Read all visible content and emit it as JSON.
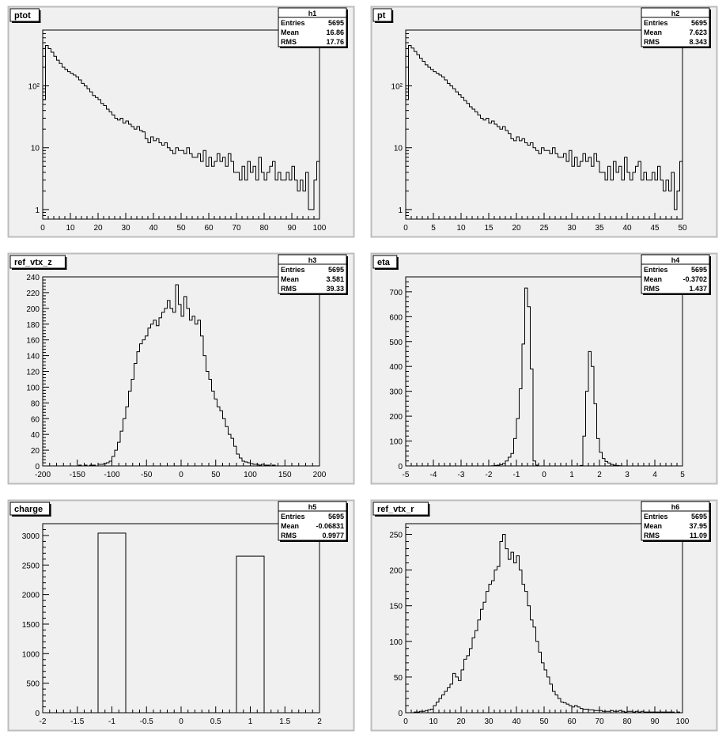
{
  "chart_data": [
    {
      "type": "bar",
      "title": "ptot",
      "stats": {
        "name": "h1",
        "entries": "5695",
        "mean": "16.86",
        "rms": "17.76"
      },
      "x_range": [
        0,
        100
      ],
      "x_ticks": [
        0,
        10,
        20,
        30,
        40,
        50,
        60,
        70,
        80,
        90,
        100
      ],
      "y_scale": "log",
      "ylim": [
        0.7,
        800
      ],
      "y_ticks": [
        {
          "value": 1,
          "label": "1"
        },
        {
          "value": 10,
          "label": "10"
        },
        {
          "value": 100,
          "label": "10²"
        }
      ],
      "bin_width": 1,
      "values": [
        60,
        450,
        400,
        350,
        300,
        260,
        230,
        200,
        185,
        170,
        160,
        150,
        140,
        125,
        110,
        100,
        90,
        80,
        70,
        65,
        60,
        52,
        48,
        42,
        38,
        34,
        30,
        28,
        30,
        25,
        27,
        24,
        22,
        20,
        22,
        19,
        18,
        14,
        12,
        15,
        13,
        14,
        12,
        11,
        12,
        10,
        9,
        8,
        10,
        9,
        9,
        8,
        10,
        8,
        7,
        7,
        8,
        6,
        9,
        5,
        7,
        5,
        6,
        8,
        6,
        7,
        5,
        8,
        6,
        4,
        4,
        3,
        5,
        3,
        6,
        4,
        5,
        3,
        7,
        4,
        3,
        4,
        5,
        6,
        3,
        4,
        3,
        3,
        4,
        3,
        5,
        3,
        2,
        3,
        2,
        4,
        1,
        1,
        3,
        6
      ]
    },
    {
      "type": "bar",
      "title": "pt",
      "stats": {
        "name": "h2",
        "entries": "5695",
        "mean": "7.623",
        "rms": "8.343"
      },
      "x_range": [
        0,
        50
      ],
      "x_ticks": [
        0,
        5,
        10,
        15,
        20,
        25,
        30,
        35,
        40,
        45,
        50
      ],
      "y_scale": "log",
      "ylim": [
        0.7,
        800
      ],
      "y_ticks": [
        {
          "value": 1,
          "label": "1"
        },
        {
          "value": 10,
          "label": "10"
        },
        {
          "value": 100,
          "label": "10²"
        }
      ],
      "bin_width": 0.5,
      "values": [
        60,
        450,
        410,
        360,
        320,
        280,
        250,
        220,
        200,
        185,
        170,
        160,
        150,
        140,
        125,
        110,
        100,
        90,
        80,
        72,
        65,
        58,
        52,
        46,
        42,
        38,
        34,
        30,
        28,
        30,
        25,
        27,
        24,
        22,
        20,
        22,
        19,
        17,
        14,
        13,
        15,
        13,
        14,
        12,
        11,
        12,
        10,
        9,
        8,
        10,
        9,
        9,
        8,
        10,
        8,
        7,
        7,
        8,
        6,
        9,
        5,
        7,
        5,
        6,
        8,
        6,
        7,
        5,
        8,
        6,
        4,
        4,
        3,
        5,
        3,
        6,
        4,
        5,
        3,
        7,
        4,
        3,
        4,
        5,
        6,
        3,
        4,
        3,
        3,
        4,
        3,
        5,
        3,
        2,
        3,
        2,
        4,
        1,
        2,
        6
      ]
    },
    {
      "type": "bar",
      "title": "ref_vtx_z",
      "stats": {
        "name": "h3",
        "entries": "5695",
        "mean": "3.581",
        "rms": "39.33"
      },
      "x_range": [
        -200,
        200
      ],
      "x_ticks": [
        -200,
        -150,
        -100,
        -50,
        0,
        50,
        100,
        150,
        200
      ],
      "y_scale": "linear",
      "ylim": [
        0,
        240
      ],
      "y_ticks": [
        {
          "value": 0,
          "label": "0"
        },
        {
          "value": 20,
          "label": "20"
        },
        {
          "value": 40,
          "label": "40"
        },
        {
          "value": 60,
          "label": "60"
        },
        {
          "value": 80,
          "label": "80"
        },
        {
          "value": 100,
          "label": "100"
        },
        {
          "value": 120,
          "label": "120"
        },
        {
          "value": 140,
          "label": "140"
        },
        {
          "value": 160,
          "label": "160"
        },
        {
          "value": 180,
          "label": "180"
        },
        {
          "value": 200,
          "label": "200"
        },
        {
          "value": 220,
          "label": "220"
        },
        {
          "value": 240,
          "label": "240"
        }
      ],
      "bin_width": 4,
      "x_start": -200,
      "values": [
        0,
        0,
        0,
        0,
        0,
        0,
        0,
        0,
        0,
        0,
        0,
        0,
        0,
        1,
        0,
        1,
        0,
        1,
        1,
        0,
        2,
        2,
        3,
        4,
        6,
        12,
        20,
        30,
        44,
        60,
        75,
        95,
        110,
        130,
        145,
        155,
        160,
        165,
        175,
        180,
        185,
        178,
        188,
        195,
        200,
        210,
        200,
        195,
        230,
        205,
        190,
        215,
        200,
        185,
        190,
        180,
        185,
        165,
        140,
        120,
        110,
        95,
        85,
        75,
        70,
        60,
        50,
        40,
        35,
        25,
        15,
        10,
        6,
        5,
        4,
        3,
        2,
        2,
        1,
        2,
        1,
        1,
        0,
        1,
        0,
        0,
        0,
        0,
        0,
        0,
        0,
        0,
        0,
        0,
        0,
        0,
        0,
        0,
        0,
        0
      ]
    },
    {
      "type": "bar",
      "title": "eta",
      "stats": {
        "name": "h4",
        "entries": "5695",
        "mean": "-0.3702",
        "rms": "1.437"
      },
      "x_range": [
        -5,
        5
      ],
      "x_ticks": [
        -5,
        -4,
        -3,
        -2,
        -1,
        0,
        1,
        2,
        3,
        4,
        5
      ],
      "y_scale": "linear",
      "ylim": [
        0,
        760
      ],
      "y_ticks": [
        {
          "value": 0,
          "label": "0"
        },
        {
          "value": 100,
          "label": "100"
        },
        {
          "value": 200,
          "label": "200"
        },
        {
          "value": 300,
          "label": "300"
        },
        {
          "value": 400,
          "label": "400"
        },
        {
          "value": 500,
          "label": "500"
        },
        {
          "value": 600,
          "label": "600"
        },
        {
          "value": 700,
          "label": "700"
        }
      ],
      "bin_width": 0.1,
      "x_start": -5,
      "values": [
        0,
        0,
        0,
        0,
        0,
        0,
        0,
        0,
        0,
        0,
        0,
        0,
        0,
        0,
        0,
        0,
        0,
        0,
        0,
        0,
        0,
        0,
        0,
        0,
        0,
        0,
        0,
        0,
        0,
        0,
        0,
        1,
        2,
        3,
        5,
        10,
        20,
        35,
        50,
        110,
        190,
        310,
        490,
        715,
        640,
        390,
        20,
        3,
        0,
        0,
        0,
        0,
        0,
        0,
        0,
        0,
        0,
        0,
        0,
        0,
        0,
        0,
        0,
        2,
        120,
        300,
        460,
        400,
        250,
        110,
        55,
        30,
        18,
        12,
        6,
        3,
        2,
        1,
        0,
        0,
        0,
        0,
        0,
        0,
        0,
        0,
        0,
        0,
        0,
        0,
        0,
        0,
        0,
        0,
        0,
        0,
        0,
        0,
        0,
        0
      ]
    },
    {
      "type": "bar",
      "title": "charge",
      "stats": {
        "name": "h5",
        "entries": "5695",
        "mean": "-0.06831",
        "rms": "0.9977"
      },
      "x_range": [
        -2,
        2
      ],
      "x_ticks": [
        {
          "value": -2,
          "label": "-2"
        },
        {
          "value": -1.5,
          "label": "-1.5"
        },
        {
          "value": -1,
          "label": "-1"
        },
        {
          "value": -0.5,
          "label": "-0.5"
        },
        {
          "value": 0,
          "label": "0"
        },
        {
          "value": 0.5,
          "label": "0.5"
        },
        {
          "value": 1,
          "label": "1"
        },
        {
          "value": 1.5,
          "label": "1.5"
        },
        {
          "value": 2,
          "label": "2"
        }
      ],
      "y_scale": "linear",
      "ylim": [
        0,
        3200
      ],
      "y_ticks": [
        {
          "value": 0,
          "label": "0"
        },
        {
          "value": 500,
          "label": "500"
        },
        {
          "value": 1000,
          "label": "1000"
        },
        {
          "value": 1500,
          "label": "1500"
        },
        {
          "value": 2000,
          "label": "2000"
        },
        {
          "value": 2500,
          "label": "2500"
        },
        {
          "value": 3000,
          "label": "3000"
        }
      ],
      "bins": [
        {
          "x0": -1.2,
          "x1": -0.8,
          "value": 3040
        },
        {
          "x0": 0.8,
          "x1": 1.2,
          "value": 2650
        }
      ]
    },
    {
      "type": "bar",
      "title": "ref_vtx_r",
      "stats": {
        "name": "h6",
        "entries": "5695",
        "mean": "37.95",
        "rms": "11.09"
      },
      "x_range": [
        0,
        100
      ],
      "x_ticks": [
        0,
        10,
        20,
        30,
        40,
        50,
        60,
        70,
        80,
        90,
        100
      ],
      "y_scale": "linear",
      "ylim": [
        0,
        265
      ],
      "y_ticks": [
        {
          "value": 0,
          "label": "0"
        },
        {
          "value": 50,
          "label": "50"
        },
        {
          "value": 100,
          "label": "100"
        },
        {
          "value": 150,
          "label": "150"
        },
        {
          "value": 200,
          "label": "200"
        },
        {
          "value": 250,
          "label": "250"
        }
      ],
      "bin_width": 1,
      "x_start": 0,
      "values": [
        0,
        0,
        0,
        1,
        1,
        2,
        2,
        3,
        4,
        5,
        10,
        15,
        20,
        25,
        30,
        35,
        40,
        55,
        50,
        45,
        60,
        75,
        80,
        90,
        105,
        115,
        130,
        145,
        155,
        170,
        180,
        185,
        200,
        205,
        240,
        250,
        230,
        215,
        225,
        210,
        220,
        200,
        180,
        170,
        150,
        130,
        120,
        100,
        85,
        70,
        60,
        50,
        40,
        30,
        25,
        20,
        15,
        14,
        12,
        10,
        8,
        10,
        8,
        6,
        5,
        5,
        4,
        4,
        3,
        3,
        3,
        2,
        2,
        2,
        3,
        2,
        2,
        3,
        2,
        1,
        2,
        2,
        1,
        2,
        1,
        2,
        1,
        1,
        1,
        1,
        1,
        1,
        1,
        1,
        1,
        1,
        1,
        0,
        1,
        0
      ]
    }
  ]
}
